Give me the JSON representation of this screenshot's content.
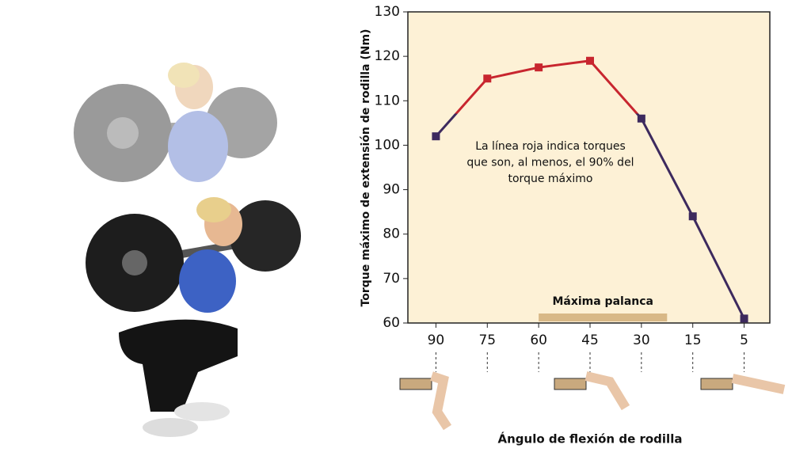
{
  "chart_data": {
    "type": "line",
    "y_label": "Torque máximo de extensión de rodilla (Nm)",
    "x_label": "Ángulo de flexión de rodilla",
    "categories": [
      "90",
      "75",
      "60",
      "45",
      "30",
      "15",
      "5"
    ],
    "series": [
      {
        "values": [
          102,
          115,
          117.5,
          119,
          106,
          84,
          61
        ],
        "color": "#3d2a5e",
        "highlight_color": "#c8262f",
        "highlight_fraction": 0.9
      }
    ],
    "ylim": [
      60,
      130
    ],
    "yticks": [
      60,
      70,
      80,
      90,
      100,
      110,
      120,
      130
    ],
    "annotation": [
      "La línea roja indica torques",
      "que son, al menos, el 90% del",
      "torque máximo"
    ],
    "band_label": "Máxima palanca"
  }
}
